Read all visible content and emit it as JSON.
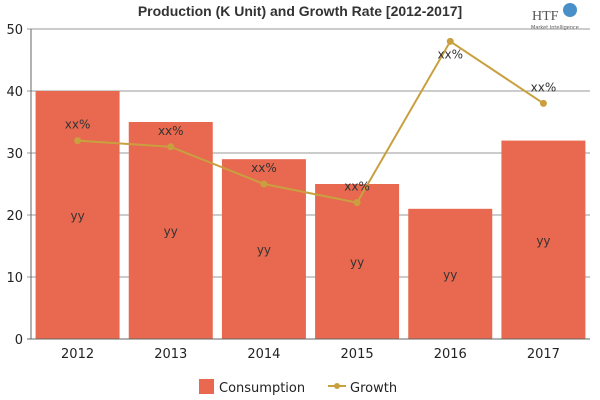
{
  "chart_data": {
    "type": "bar",
    "title": "Production (K Unit) and Growth Rate [2012-2017]",
    "categories": [
      "2012",
      "2013",
      "2014",
      "2015",
      "2016",
      "2017"
    ],
    "ylim": [
      0,
      50
    ],
    "yticks": [
      "0",
      "10",
      "20",
      "30",
      "40",
      "50"
    ],
    "grid": true,
    "legend_position": "bottom",
    "series": [
      {
        "name": "Consumption",
        "kind": "bar",
        "color": "#e8694f",
        "values": [
          40,
          35,
          29,
          25,
          21,
          32
        ],
        "labels": [
          "yy",
          "yy",
          "yy",
          "yy",
          "yy",
          "yy"
        ]
      },
      {
        "name": "Growth",
        "kind": "line",
        "color": "#c9a040",
        "values": [
          32,
          31,
          25,
          22,
          48,
          38
        ],
        "labels": [
          "xx%",
          "xx%",
          "xx%",
          "xx%",
          "xx%",
          "xx%"
        ]
      }
    ]
  },
  "logo": {
    "text": "HTF",
    "subtext": "Market Intelligence"
  }
}
